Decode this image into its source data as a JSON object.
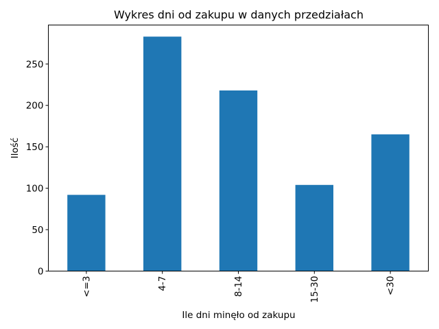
{
  "chart_data": {
    "type": "bar",
    "title": "Wykres dni od zakupu w danych przedziałach",
    "xlabel": "Ile dni minęło od zakupu",
    "ylabel": "Ilość",
    "categories": [
      "<=3",
      "4-7",
      "8-14",
      "15-30",
      "<30"
    ],
    "values": [
      92,
      283,
      218,
      104,
      165
    ],
    "ylim": [
      0,
      297
    ],
    "yticks": [
      0,
      50,
      100,
      150,
      200,
      250
    ],
    "grid": false,
    "bar_color": "#1f77b4",
    "xtick_rotation": "vertical"
  }
}
